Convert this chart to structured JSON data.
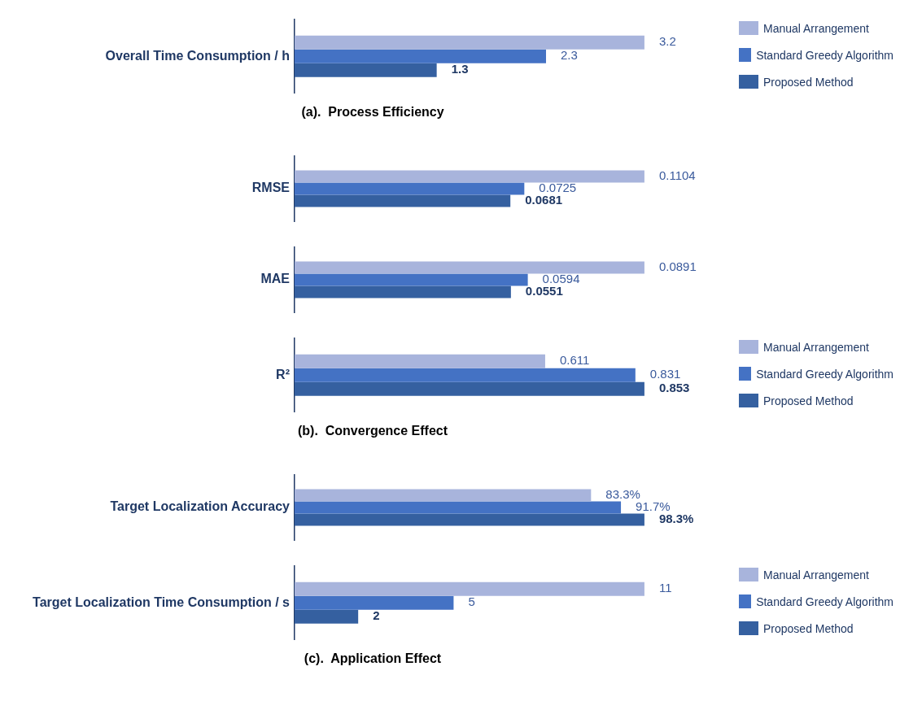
{
  "chart_data": [
    {
      "type": "bar",
      "orientation": "horizontal",
      "title": "(a).  Process Efficiency",
      "categories": [
        "Overall Time Consumption / h"
      ],
      "data_labels": true,
      "legend": "right",
      "series": [
        {
          "name": "Manual Arrangement",
          "color": "#a8b4dc",
          "values": [
            3.2
          ]
        },
        {
          "name": "Standard Greedy Algorithm",
          "color": "#4472c4",
          "values": [
            2.3
          ]
        },
        {
          "name": "Proposed Method",
          "color": "#3560a0",
          "values": [
            1.3
          ]
        }
      ]
    },
    {
      "type": "bar",
      "orientation": "horizontal",
      "categories": [
        "RMSE"
      ],
      "data_labels": true,
      "legend": false,
      "series": [
        {
          "color": "#a8b4dc",
          "values": [
            0.1104
          ]
        },
        {
          "color": "#4472c4",
          "values": [
            0.0725
          ]
        },
        {
          "color": "#3560a0",
          "values": [
            0.0681
          ]
        }
      ]
    },
    {
      "type": "bar",
      "orientation": "horizontal",
      "categories": [
        "MAE"
      ],
      "data_labels": true,
      "legend": false,
      "series": [
        {
          "color": "#a8b4dc",
          "values": [
            0.0891
          ]
        },
        {
          "color": "#4472c4",
          "values": [
            0.0594
          ]
        },
        {
          "color": "#3560a0",
          "values": [
            0.0551
          ]
        }
      ]
    },
    {
      "type": "bar",
      "orientation": "horizontal",
      "title": "(b).  Convergence Effect",
      "categories": [
        "R²"
      ],
      "data_labels": true,
      "legend": "right",
      "series": [
        {
          "name": "Manual Arrangement",
          "color": "#a8b4dc",
          "values": [
            0.611
          ]
        },
        {
          "name": "Standard Greedy Algorithm",
          "color": "#4472c4",
          "values": [
            0.831
          ]
        },
        {
          "name": "Proposed Method",
          "color": "#3560a0",
          "values": [
            0.853
          ]
        }
      ]
    },
    {
      "type": "bar",
      "orientation": "horizontal",
      "categories": [
        "Target Localization Accuracy"
      ],
      "legend": false,
      "series": [
        {
          "color": "#a8b4dc",
          "values": [
            83.3
          ],
          "value_labels": [
            "83.3%"
          ]
        },
        {
          "color": "#4472c4",
          "values": [
            91.7
          ],
          "value_labels": [
            "91.7%"
          ]
        },
        {
          "color": "#3560a0",
          "values": [
            98.3
          ],
          "value_labels": [
            "98.3%"
          ]
        }
      ]
    },
    {
      "type": "bar",
      "orientation": "horizontal",
      "title": "(c).  Application Effect",
      "categories": [
        "Target Localization Time Consumption / s"
      ],
      "data_labels": true,
      "legend": "right",
      "series": [
        {
          "name": "Manual Arrangement",
          "color": "#a8b4dc",
          "values": [
            11
          ]
        },
        {
          "name": "Standard Greedy Algorithm",
          "color": "#4472c4",
          "values": [
            5
          ]
        },
        {
          "name": "Proposed Method",
          "color": "#3560a0",
          "values": [
            2
          ]
        }
      ]
    }
  ]
}
